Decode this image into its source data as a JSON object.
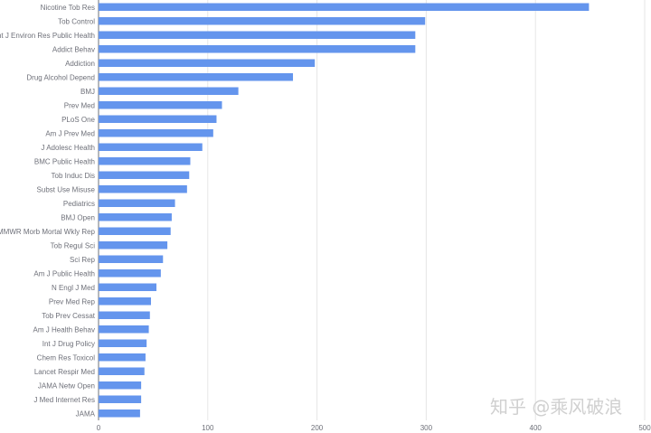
{
  "chart_data": {
    "type": "bar",
    "orientation": "horizontal",
    "categories": [
      "Nicotine Tob Res",
      "Tob Control",
      "Int J Environ Res Public Health",
      "Addict Behav",
      "Addiction",
      "Drug Alcohol Depend",
      "BMJ",
      "Prev Med",
      "PLoS One",
      "Am J Prev Med",
      "J Adolesc Health",
      "BMC Public Health",
      "Tob Induc Dis",
      "Subst Use Misuse",
      "Pediatrics",
      "BMJ Open",
      "MMWR Morb Mortal Wkly Rep",
      "Tob Regul Sci",
      "Sci Rep",
      "Am J Public Health",
      "N Engl J Med",
      "Prev Med Rep",
      "Tob Prev Cessat",
      "Am J Health Behav",
      "Int J Drug Policy",
      "Chem Res Toxicol",
      "Lancet Respir Med",
      "JAMA Netw Open",
      "J Med Internet Res",
      "JAMA"
    ],
    "values": [
      449,
      299,
      290,
      290,
      198,
      178,
      128,
      113,
      108,
      105,
      95,
      84,
      83,
      81,
      70,
      67,
      66,
      63,
      59,
      57,
      53,
      48,
      47,
      46,
      44,
      43,
      42,
      39,
      39,
      38
    ],
    "xlim": [
      0,
      500
    ],
    "xticks": [
      "0",
      "100",
      "200",
      "300",
      "400",
      "500"
    ],
    "bar_color": "#6495ed",
    "grid": true
  },
  "watermark": "知乎 @乘风破浪"
}
